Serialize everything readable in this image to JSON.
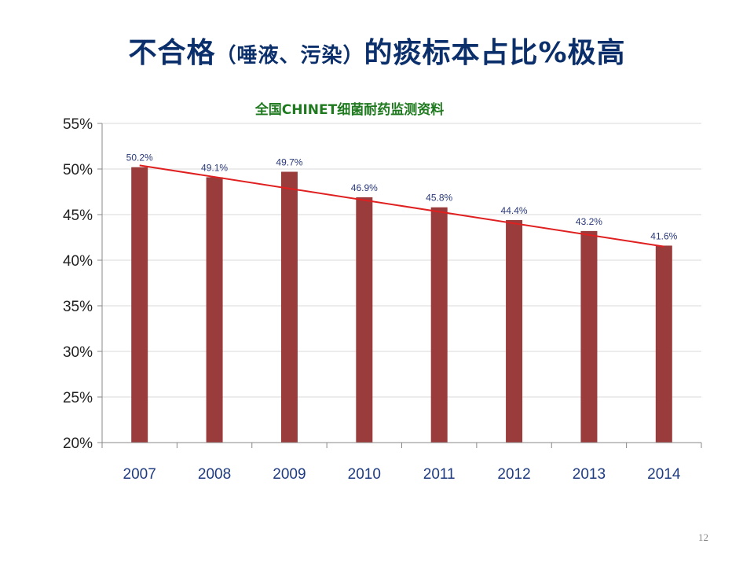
{
  "slide": {
    "title_main": "不合格",
    "title_paren": "（唾液、污染）",
    "title_tail": "的痰标本占比%极高",
    "page_number": "12"
  },
  "chart_data": {
    "type": "bar",
    "title": "全国CHINET细菌耐药监测资料",
    "categories": [
      "2007",
      "2008",
      "2009",
      "2010",
      "2011",
      "2012",
      "2013",
      "2014"
    ],
    "values": [
      50.2,
      49.1,
      49.7,
      46.9,
      45.8,
      44.4,
      43.2,
      41.6
    ],
    "data_labels": [
      "50.2%",
      "49.1%",
      "49.7%",
      "46.9%",
      "45.8%",
      "44.4%",
      "43.2%",
      "41.6%"
    ],
    "ylim": [
      20,
      55
    ],
    "yticks": [
      20,
      25,
      30,
      35,
      40,
      45,
      50,
      55
    ],
    "ytick_labels": [
      "20%",
      "25%",
      "30%",
      "35%",
      "40%",
      "45%",
      "50%",
      "55%"
    ],
    "trendline": {
      "type": "linear",
      "color": "#e02020",
      "start": 50.4,
      "end": 41.5
    },
    "bar_color": "#9b3c3c",
    "grid": true,
    "xlabel": "",
    "ylabel": ""
  }
}
